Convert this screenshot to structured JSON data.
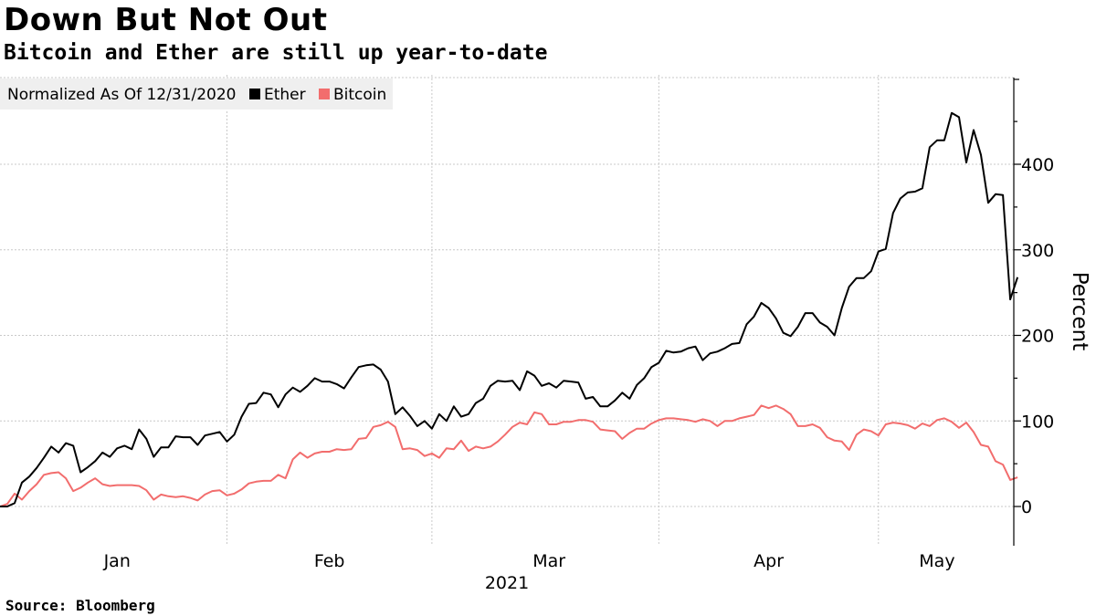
{
  "header": {
    "title": "Down But Not Out",
    "subtitle": "Bitcoin and Ether are still up year-to-date"
  },
  "footer": {
    "source": "Source: Bloomberg"
  },
  "colors": {
    "ether": "#000000",
    "bitcoin": "#f26d6d",
    "grid": "#c8c8c8",
    "legend_bg": "#efefef"
  },
  "chart_data": {
    "type": "line",
    "legend": {
      "title": "Normalized As Of 12/31/2020",
      "placement": "top-left"
    },
    "ylabel": "Percent",
    "ylim": [
      -45,
      500
    ],
    "yticks": [
      0,
      100,
      200,
      300,
      400
    ],
    "xlim": [
      "2020-12-31",
      "2021-05-13"
    ],
    "month_ticks": [
      {
        "label": "Jan",
        "at": "2021-01-16"
      },
      {
        "label": "Feb",
        "at": "2021-02-14"
      },
      {
        "label": "Mar",
        "at": "2021-03-16"
      },
      {
        "label": "Apr",
        "at": "2021-04-15"
      },
      {
        "label": "May",
        "at": "2021-05-08"
      }
    ],
    "year_label": "2021",
    "gridlines_at": [
      "2021-01-31",
      "2021-02-28",
      "2021-03-31",
      "2021-04-30"
    ],
    "grid": true,
    "series": [
      {
        "name": "Ether",
        "color": "#000000",
        "points": [
          [
            "2020-12-31",
            0
          ],
          [
            "2021-01-01",
            0
          ],
          [
            "2021-01-02",
            4
          ],
          [
            "2021-01-03",
            28
          ],
          [
            "2021-01-04",
            35
          ],
          [
            "2021-01-05",
            45
          ],
          [
            "2021-01-06",
            57
          ],
          [
            "2021-01-07",
            70
          ],
          [
            "2021-01-08",
            63
          ],
          [
            "2021-01-09",
            74
          ],
          [
            "2021-01-10",
            71
          ],
          [
            "2021-01-11",
            40
          ],
          [
            "2021-01-12",
            46
          ],
          [
            "2021-01-13",
            53
          ],
          [
            "2021-01-14",
            63
          ],
          [
            "2021-01-15",
            58
          ],
          [
            "2021-01-16",
            68
          ],
          [
            "2021-01-17",
            71
          ],
          [
            "2021-01-18",
            67
          ],
          [
            "2021-01-19",
            90
          ],
          [
            "2021-01-20",
            79
          ],
          [
            "2021-01-21",
            58
          ],
          [
            "2021-01-22",
            69
          ],
          [
            "2021-01-23",
            69
          ],
          [
            "2021-01-24",
            82
          ],
          [
            "2021-01-25",
            81
          ],
          [
            "2021-01-26",
            81
          ],
          [
            "2021-01-27",
            72
          ],
          [
            "2021-01-28",
            83
          ],
          [
            "2021-01-29",
            85
          ],
          [
            "2021-01-30",
            87
          ],
          [
            "2021-01-31",
            76
          ],
          [
            "2021-02-01",
            84
          ],
          [
            "2021-02-02",
            105
          ],
          [
            "2021-02-03",
            120
          ],
          [
            "2021-02-04",
            121
          ],
          [
            "2021-02-05",
            133
          ],
          [
            "2021-02-06",
            131
          ],
          [
            "2021-02-07",
            116
          ],
          [
            "2021-02-08",
            131
          ],
          [
            "2021-02-09",
            139
          ],
          [
            "2021-02-10",
            134
          ],
          [
            "2021-02-11",
            141
          ],
          [
            "2021-02-12",
            150
          ],
          [
            "2021-02-13",
            146
          ],
          [
            "2021-02-14",
            146
          ],
          [
            "2021-02-15",
            143
          ],
          [
            "2021-02-16",
            138
          ],
          [
            "2021-02-17",
            151
          ],
          [
            "2021-02-18",
            163
          ],
          [
            "2021-02-19",
            165
          ],
          [
            "2021-02-20",
            166
          ],
          [
            "2021-02-21",
            160
          ],
          [
            "2021-02-22",
            146
          ],
          [
            "2021-02-23",
            108
          ],
          [
            "2021-02-24",
            116
          ],
          [
            "2021-02-25",
            106
          ],
          [
            "2021-02-26",
            94
          ],
          [
            "2021-02-27",
            100
          ],
          [
            "2021-02-28",
            91
          ],
          [
            "2021-03-01",
            108
          ],
          [
            "2021-03-02",
            100
          ],
          [
            "2021-03-03",
            117
          ],
          [
            "2021-03-04",
            105
          ],
          [
            "2021-03-05",
            108
          ],
          [
            "2021-03-06",
            121
          ],
          [
            "2021-03-07",
            126
          ],
          [
            "2021-03-08",
            141
          ],
          [
            "2021-03-09",
            147
          ],
          [
            "2021-03-10",
            146
          ],
          [
            "2021-03-11",
            147
          ],
          [
            "2021-03-12",
            136
          ],
          [
            "2021-03-13",
            158
          ],
          [
            "2021-03-14",
            153
          ],
          [
            "2021-03-15",
            141
          ],
          [
            "2021-03-16",
            144
          ],
          [
            "2021-03-17",
            139
          ],
          [
            "2021-03-18",
            147
          ],
          [
            "2021-03-19",
            146
          ],
          [
            "2021-03-20",
            145
          ],
          [
            "2021-03-21",
            126
          ],
          [
            "2021-03-22",
            128
          ],
          [
            "2021-03-23",
            117
          ],
          [
            "2021-03-24",
            117
          ],
          [
            "2021-03-25",
            124
          ],
          [
            "2021-03-26",
            133
          ],
          [
            "2021-03-27",
            126
          ],
          [
            "2021-03-28",
            142
          ],
          [
            "2021-03-29",
            150
          ],
          [
            "2021-03-30",
            163
          ],
          [
            "2021-03-31",
            168
          ],
          [
            "2021-04-01",
            182
          ],
          [
            "2021-04-02",
            180
          ],
          [
            "2021-04-03",
            181
          ],
          [
            "2021-04-04",
            185
          ],
          [
            "2021-04-05",
            187
          ],
          [
            "2021-04-06",
            171
          ],
          [
            "2021-04-07",
            179
          ],
          [
            "2021-04-08",
            181
          ],
          [
            "2021-04-09",
            185
          ],
          [
            "2021-04-10",
            190
          ],
          [
            "2021-04-11",
            191
          ],
          [
            "2021-04-12",
            213
          ],
          [
            "2021-04-13",
            222
          ],
          [
            "2021-04-14",
            238
          ],
          [
            "2021-04-15",
            232
          ],
          [
            "2021-04-16",
            220
          ],
          [
            "2021-04-17",
            203
          ],
          [
            "2021-04-18",
            199
          ],
          [
            "2021-04-19",
            210
          ],
          [
            "2021-04-20",
            226
          ],
          [
            "2021-04-21",
            226
          ],
          [
            "2021-04-22",
            215
          ],
          [
            "2021-04-23",
            210
          ],
          [
            "2021-04-24",
            200
          ],
          [
            "2021-04-25",
            232
          ],
          [
            "2021-04-26",
            257
          ],
          [
            "2021-04-27",
            267
          ],
          [
            "2021-04-28",
            267
          ],
          [
            "2021-04-29",
            275
          ],
          [
            "2021-04-30",
            298
          ],
          [
            "2021-05-01",
            301
          ],
          [
            "2021-05-02",
            343
          ],
          [
            "2021-05-03",
            360
          ],
          [
            "2021-05-04",
            367
          ],
          [
            "2021-05-05",
            368
          ],
          [
            "2021-05-06",
            372
          ],
          [
            "2021-05-07",
            420
          ],
          [
            "2021-05-08",
            428
          ],
          [
            "2021-05-09",
            428
          ],
          [
            "2021-05-10",
            460
          ],
          [
            "2021-05-11",
            455
          ],
          [
            "2021-05-12",
            402
          ],
          [
            "2021-05-13",
            440
          ],
          [
            "2021-05-14",
            411
          ],
          [
            "2021-05-15",
            355
          ],
          [
            "2021-05-16",
            365
          ],
          [
            "2021-05-17",
            364
          ],
          [
            "2021-05-18",
            242
          ],
          [
            "2021-05-19",
            268
          ]
        ]
      },
      {
        "name": "Bitcoin",
        "color": "#f26d6d",
        "points": [
          [
            "2020-12-31",
            0
          ],
          [
            "2021-01-01",
            3
          ],
          [
            "2021-01-02",
            15
          ],
          [
            "2021-01-03",
            8
          ],
          [
            "2021-01-04",
            18
          ],
          [
            "2021-01-05",
            26
          ],
          [
            "2021-01-06",
            37
          ],
          [
            "2021-01-07",
            39
          ],
          [
            "2021-01-08",
            40
          ],
          [
            "2021-01-09",
            33
          ],
          [
            "2021-01-10",
            18
          ],
          [
            "2021-01-11",
            22
          ],
          [
            "2021-01-12",
            28
          ],
          [
            "2021-01-13",
            33
          ],
          [
            "2021-01-14",
            26
          ],
          [
            "2021-01-15",
            24
          ],
          [
            "2021-01-16",
            25
          ],
          [
            "2021-01-17",
            25
          ],
          [
            "2021-01-18",
            25
          ],
          [
            "2021-01-19",
            24
          ],
          [
            "2021-01-20",
            19
          ],
          [
            "2021-01-21",
            8
          ],
          [
            "2021-01-22",
            14
          ],
          [
            "2021-01-23",
            12
          ],
          [
            "2021-01-24",
            11
          ],
          [
            "2021-01-25",
            12
          ],
          [
            "2021-01-26",
            10
          ],
          [
            "2021-01-27",
            7
          ],
          [
            "2021-01-28",
            14
          ],
          [
            "2021-01-29",
            18
          ],
          [
            "2021-01-30",
            19
          ],
          [
            "2021-01-31",
            13
          ],
          [
            "2021-02-01",
            15
          ],
          [
            "2021-02-02",
            20
          ],
          [
            "2021-02-03",
            27
          ],
          [
            "2021-02-04",
            29
          ],
          [
            "2021-02-05",
            30
          ],
          [
            "2021-02-06",
            30
          ],
          [
            "2021-02-07",
            37
          ],
          [
            "2021-02-08",
            33
          ],
          [
            "2021-02-09",
            55
          ],
          [
            "2021-02-10",
            63
          ],
          [
            "2021-02-11",
            57
          ],
          [
            "2021-02-12",
            62
          ],
          [
            "2021-02-13",
            64
          ],
          [
            "2021-02-14",
            64
          ],
          [
            "2021-02-15",
            67
          ],
          [
            "2021-02-16",
            66
          ],
          [
            "2021-02-17",
            67
          ],
          [
            "2021-02-18",
            79
          ],
          [
            "2021-02-19",
            80
          ],
          [
            "2021-02-20",
            93
          ],
          [
            "2021-02-21",
            95
          ],
          [
            "2021-02-22",
            99
          ],
          [
            "2021-02-23",
            93
          ],
          [
            "2021-02-24",
            67
          ],
          [
            "2021-02-25",
            68
          ],
          [
            "2021-02-26",
            66
          ],
          [
            "2021-02-27",
            59
          ],
          [
            "2021-02-28",
            62
          ],
          [
            "2021-03-01",
            57
          ],
          [
            "2021-03-02",
            68
          ],
          [
            "2021-03-03",
            67
          ],
          [
            "2021-03-04",
            77
          ],
          [
            "2021-03-05",
            65
          ],
          [
            "2021-03-06",
            70
          ],
          [
            "2021-03-07",
            68
          ],
          [
            "2021-03-08",
            70
          ],
          [
            "2021-03-09",
            76
          ],
          [
            "2021-03-10",
            84
          ],
          [
            "2021-03-11",
            93
          ],
          [
            "2021-03-12",
            98
          ],
          [
            "2021-03-13",
            96
          ],
          [
            "2021-03-14",
            110
          ],
          [
            "2021-03-15",
            108
          ],
          [
            "2021-03-16",
            96
          ],
          [
            "2021-03-17",
            96
          ],
          [
            "2021-03-18",
            99
          ],
          [
            "2021-03-19",
            99
          ],
          [
            "2021-03-20",
            101
          ],
          [
            "2021-03-21",
            101
          ],
          [
            "2021-03-22",
            99
          ],
          [
            "2021-03-23",
            90
          ],
          [
            "2021-03-24",
            89
          ],
          [
            "2021-03-25",
            88
          ],
          [
            "2021-03-26",
            79
          ],
          [
            "2021-03-27",
            86
          ],
          [
            "2021-03-28",
            91
          ],
          [
            "2021-03-29",
            91
          ],
          [
            "2021-03-30",
            97
          ],
          [
            "2021-03-31",
            101
          ],
          [
            "2021-04-01",
            103
          ],
          [
            "2021-04-02",
            103
          ],
          [
            "2021-04-03",
            102
          ],
          [
            "2021-04-04",
            101
          ],
          [
            "2021-04-05",
            99
          ],
          [
            "2021-04-06",
            102
          ],
          [
            "2021-04-07",
            100
          ],
          [
            "2021-04-08",
            94
          ],
          [
            "2021-04-09",
            100
          ],
          [
            "2021-04-10",
            100
          ],
          [
            "2021-04-11",
            103
          ],
          [
            "2021-04-12",
            105
          ],
          [
            "2021-04-13",
            107
          ],
          [
            "2021-04-14",
            118
          ],
          [
            "2021-04-15",
            115
          ],
          [
            "2021-04-16",
            118
          ],
          [
            "2021-04-17",
            114
          ],
          [
            "2021-04-18",
            108
          ],
          [
            "2021-04-19",
            94
          ],
          [
            "2021-04-20",
            94
          ],
          [
            "2021-04-21",
            96
          ],
          [
            "2021-04-22",
            92
          ],
          [
            "2021-04-23",
            81
          ],
          [
            "2021-04-24",
            77
          ],
          [
            "2021-04-25",
            76
          ],
          [
            "2021-04-26",
            66
          ],
          [
            "2021-04-27",
            84
          ],
          [
            "2021-04-28",
            90
          ],
          [
            "2021-04-29",
            88
          ],
          [
            "2021-04-30",
            83
          ],
          [
            "2021-05-01",
            96
          ],
          [
            "2021-05-02",
            98
          ],
          [
            "2021-05-03",
            97
          ],
          [
            "2021-05-04",
            95
          ],
          [
            "2021-05-05",
            91
          ],
          [
            "2021-05-06",
            97
          ],
          [
            "2021-05-07",
            94
          ],
          [
            "2021-05-08",
            101
          ],
          [
            "2021-05-09",
            103
          ],
          [
            "2021-05-10",
            99
          ],
          [
            "2021-05-11",
            92
          ],
          [
            "2021-05-12",
            98
          ],
          [
            "2021-05-13",
            87
          ],
          [
            "2021-05-14",
            72
          ],
          [
            "2021-05-15",
            70
          ],
          [
            "2021-05-16",
            53
          ],
          [
            "2021-05-17",
            49
          ],
          [
            "2021-05-18",
            31
          ],
          [
            "2021-05-19",
            34
          ]
        ]
      }
    ]
  }
}
